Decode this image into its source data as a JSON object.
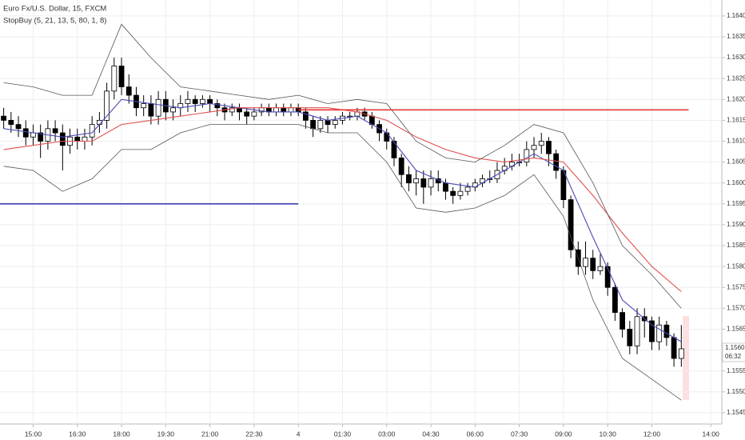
{
  "chart_data": {
    "type": "candlestick",
    "title": "Euro Fx/U.S. Dollar, 15, FXCM",
    "subtitle": "StopBuy (5, 21, 13, 5, 80, 1, 8)",
    "open": [
      1.1616,
      1.1615,
      1.1614,
      1.1613,
      1.1611,
      1.1612,
      1.161,
      1.1613,
      1.1612,
      1.1609,
      1.1611,
      1.161,
      1.1611,
      1.1614,
      1.1615,
      1.1622,
      1.1628,
      1.1623,
      1.1621,
      1.1618,
      1.1619,
      1.1616,
      1.162,
      1.1617,
      1.1618,
      1.1619,
      1.162,
      1.1619,
      1.162,
      1.1619,
      1.1618,
      1.1617,
      1.1618,
      1.1617,
      1.1616,
      1.1617,
      1.1618,
      1.1617,
      1.1618,
      1.1617,
      1.1618,
      1.1617,
      1.1615,
      1.1613,
      1.1615,
      1.1614,
      1.1615,
      1.1616,
      1.1616,
      1.1617,
      1.1616,
      1.1614,
      1.1612,
      1.161,
      1.1606,
      1.1602,
      1.16,
      1.1601,
      1.1599,
      1.1601,
      1.16,
      1.1598,
      1.1597,
      1.1598,
      1.1599,
      1.16,
      1.1601,
      1.1601,
      1.1603,
      1.1604,
      1.1605,
      1.1605,
      1.1608,
      1.1609,
      1.161,
      1.1607,
      1.1603,
      1.1596,
      1.1584,
      1.158,
      1.1582,
      1.1579,
      1.158,
      1.1575,
      1.1569,
      1.1565,
      1.1561,
      1.1568,
      1.1567,
      1.1562,
      1.1566,
      1.1563,
      1.1558
    ],
    "high": [
      1.1618,
      1.1617,
      1.1616,
      1.1615,
      1.1614,
      1.1614,
      1.1615,
      1.1615,
      1.1614,
      1.1613,
      1.1613,
      1.1613,
      1.1616,
      1.1617,
      1.1624,
      1.163,
      1.163,
      1.1626,
      1.1623,
      1.1621,
      1.1621,
      1.1622,
      1.1622,
      1.162,
      1.1621,
      1.1622,
      1.1621,
      1.1621,
      1.1621,
      1.162,
      1.1619,
      1.1619,
      1.1619,
      1.1618,
      1.1618,
      1.1619,
      1.1619,
      1.1619,
      1.1619,
      1.1619,
      1.1619,
      1.1618,
      1.1616,
      1.1616,
      1.1616,
      1.1616,
      1.1617,
      1.1617,
      1.1618,
      1.1618,
      1.1617,
      1.1615,
      1.1613,
      1.1611,
      1.1607,
      1.1604,
      1.1603,
      1.1603,
      1.1603,
      1.1603,
      1.1601,
      1.1599,
      1.16,
      1.16,
      1.1601,
      1.1602,
      1.1603,
      1.1605,
      1.1606,
      1.1607,
      1.1607,
      1.161,
      1.1611,
      1.1612,
      1.1611,
      1.1608,
      1.1604,
      1.1597,
      1.1586,
      1.1586,
      1.1584,
      1.1583,
      1.1581,
      1.1576,
      1.157,
      1.1567,
      1.157,
      1.157,
      1.1568,
      1.1568,
      1.1567,
      1.1564,
      1.1566
    ],
    "low": [
      1.1613,
      1.1612,
      1.1611,
      1.1609,
      1.1609,
      1.1606,
      1.1608,
      1.161,
      1.1603,
      1.1607,
      1.1608,
      1.1608,
      1.1609,
      1.1612,
      1.1613,
      1.162,
      1.1621,
      1.1619,
      1.1616,
      1.1616,
      1.1614,
      1.1614,
      1.1615,
      1.1615,
      1.1616,
      1.1617,
      1.1617,
      1.1618,
      1.1617,
      1.1616,
      1.1615,
      1.1616,
      1.1615,
      1.1614,
      1.1615,
      1.1616,
      1.1616,
      1.1616,
      1.1616,
      1.1616,
      1.1616,
      1.1613,
      1.1611,
      1.1612,
      1.1612,
      1.1613,
      1.1614,
      1.1615,
      1.1615,
      1.1615,
      1.1613,
      1.161,
      1.1608,
      1.1604,
      1.1599,
      1.1598,
      1.1597,
      1.1595,
      1.1597,
      1.1598,
      1.1596,
      1.1595,
      1.1596,
      1.1597,
      1.1598,
      1.1599,
      1.16,
      1.16,
      1.1602,
      1.1603,
      1.1604,
      1.1604,
      1.1606,
      1.1607,
      1.1604,
      1.1601,
      1.1594,
      1.1582,
      1.1578,
      1.1578,
      1.1577,
      1.1578,
      1.1573,
      1.1567,
      1.1563,
      1.1559,
      1.1559,
      1.1563,
      1.156,
      1.156,
      1.1561,
      1.1556,
      1.1556
    ],
    "close": [
      1.1615,
      1.1614,
      1.1613,
      1.1611,
      1.1612,
      1.161,
      1.1613,
      1.1612,
      1.1609,
      1.1611,
      1.161,
      1.1611,
      1.1614,
      1.1615,
      1.1622,
      1.1628,
      1.1623,
      1.1621,
      1.1618,
      1.1619,
      1.1616,
      1.162,
      1.1617,
      1.1618,
      1.1619,
      1.162,
      1.1619,
      1.162,
      1.1619,
      1.1618,
      1.1617,
      1.1618,
      1.1617,
      1.1616,
      1.1617,
      1.1618,
      1.1617,
      1.1618,
      1.1617,
      1.1618,
      1.1617,
      1.1615,
      1.1613,
      1.1615,
      1.1614,
      1.1615,
      1.1616,
      1.1616,
      1.1617,
      1.1616,
      1.1614,
      1.1612,
      1.161,
      1.1606,
      1.1602,
      1.16,
      1.1601,
      1.1599,
      1.1601,
      1.16,
      1.1598,
      1.1597,
      1.1598,
      1.1599,
      1.16,
      1.1601,
      1.1601,
      1.1603,
      1.1604,
      1.1605,
      1.1605,
      1.1608,
      1.1609,
      1.161,
      1.1607,
      1.1603,
      1.1596,
      1.1584,
      1.158,
      1.1582,
      1.1579,
      1.158,
      1.1575,
      1.1569,
      1.1565,
      1.1561,
      1.1568,
      1.1567,
      1.1562,
      1.1566,
      1.1563,
      1.1558,
      1.15603
    ],
    "overlays": [
      {
        "color": "#4a4ab8",
        "x": [
          0,
          4,
          8,
          12,
          16,
          20,
          24,
          28,
          32,
          36,
          40,
          44,
          48,
          52,
          56,
          60,
          64,
          68,
          72,
          76,
          80,
          84,
          88,
          92
        ],
        "values": [
          1.1613,
          1.1612,
          1.1611,
          1.1612,
          1.162,
          1.1619,
          1.1618,
          1.1619,
          1.1618,
          1.1617,
          1.1617,
          1.1615,
          1.1616,
          1.1612,
          1.1603,
          1.16,
          1.1599,
          1.1603,
          1.1607,
          1.1603,
          1.1587,
          1.1572,
          1.1566,
          1.1562
        ]
      },
      {
        "color": "#e05050",
        "x": [
          0,
          4,
          8,
          12,
          16,
          20,
          24,
          28,
          32,
          36,
          40,
          44,
          48,
          52,
          56,
          60,
          64,
          68,
          72,
          76,
          80,
          84,
          88,
          92
        ],
        "values": [
          1.1608,
          1.1609,
          1.161,
          1.161,
          1.1614,
          1.1615,
          1.1616,
          1.1617,
          1.1618,
          1.1618,
          1.1618,
          1.1618,
          1.1617,
          1.1615,
          1.1611,
          1.1608,
          1.1606,
          1.1605,
          1.1606,
          1.1605,
          1.1597,
          1.1588,
          1.158,
          1.1574
        ]
      },
      {
        "color": "#555555",
        "x": [
          0,
          4,
          8,
          12,
          16,
          20,
          24,
          28,
          32,
          36,
          40,
          44,
          48,
          52,
          56,
          60,
          64,
          68,
          72,
          76,
          80,
          84,
          88,
          92
        ],
        "values": [
          1.1624,
          1.1623,
          1.1621,
          1.1621,
          1.1638,
          1.163,
          1.1623,
          1.1622,
          1.1621,
          1.162,
          1.1621,
          1.1619,
          1.162,
          1.1619,
          1.161,
          1.1606,
          1.1605,
          1.1609,
          1.1614,
          1.1612,
          1.16,
          1.1585,
          1.1578,
          1.157
        ]
      },
      {
        "color": "#555555",
        "x": [
          0,
          4,
          8,
          12,
          16,
          20,
          24,
          28,
          32,
          36,
          40,
          44,
          48,
          52,
          56,
          60,
          64,
          68,
          72,
          76,
          80,
          84,
          88,
          92
        ],
        "values": [
          1.1604,
          1.1603,
          1.1598,
          1.1601,
          1.1608,
          1.1608,
          1.1612,
          1.1614,
          1.1614,
          1.1614,
          1.1614,
          1.1612,
          1.1612,
          1.1605,
          1.1594,
          1.1593,
          1.1594,
          1.1597,
          1.1602,
          1.1592,
          1.1572,
          1.1558,
          1.1553,
          1.1548
        ]
      }
    ],
    "levels": [
      {
        "value": 1.16175,
        "color": "#e53935",
        "from": 40,
        "to": 93
      },
      {
        "value": 1.1595,
        "color": "#3f3fb0",
        "from": -0.5,
        "to": 40
      }
    ],
    "last_price": 1.15603,
    "countdown": "06:32",
    "xlim": [
      -0.5,
      97.5
    ],
    "xticks": [
      {
        "value": 4,
        "label": "15:00"
      },
      {
        "value": 10,
        "label": "16:30"
      },
      {
        "value": 16,
        "label": "18:00"
      },
      {
        "value": 22,
        "label": "19:30"
      },
      {
        "value": 28,
        "label": "21:00"
      },
      {
        "value": 34,
        "label": "22:30"
      },
      {
        "value": 40,
        "label": "4"
      },
      {
        "value": 46,
        "label": "01:30"
      },
      {
        "value": 52,
        "label": "03:00"
      },
      {
        "value": 58,
        "label": "04:30"
      },
      {
        "value": 64,
        "label": "06:00"
      },
      {
        "value": 70,
        "label": "07:30"
      },
      {
        "value": 76,
        "label": "09:00"
      },
      {
        "value": 82,
        "label": "10:30"
      },
      {
        "value": 88,
        "label": "12:00"
      },
      {
        "value": 96,
        "label": "14:00"
      }
    ],
    "ylim": [
      1.15423,
      1.16438
    ],
    "yticks": [
      {
        "value": 1.1545,
        "label": "1.15450"
      },
      {
        "value": 1.155,
        "label": "1.15500"
      },
      {
        "value": 1.1555,
        "label": "1.15550"
      },
      {
        "value": 1.156,
        "label": "1.15600"
      },
      {
        "value": 1.1565,
        "label": "1.15650"
      },
      {
        "value": 1.157,
        "label": "1.15700"
      },
      {
        "value": 1.1575,
        "label": "1.15750"
      },
      {
        "value": 1.158,
        "label": "1.15800"
      },
      {
        "value": 1.1585,
        "label": "1.15850"
      },
      {
        "value": 1.159,
        "label": "1.15900"
      },
      {
        "value": 1.1595,
        "label": "1.15950"
      },
      {
        "value": 1.16,
        "label": "1.16000"
      },
      {
        "value": 1.1605,
        "label": "1.16050"
      },
      {
        "value": 1.161,
        "label": "1.16100"
      },
      {
        "value": 1.1615,
        "label": "1.16150"
      },
      {
        "value": 1.162,
        "label": "1.16200"
      },
      {
        "value": 1.1625,
        "label": "1.16250"
      },
      {
        "value": 1.163,
        "label": "1.16300"
      },
      {
        "value": 1.1635,
        "label": "1.16350"
      },
      {
        "value": 1.164,
        "label": "1.16400"
      }
    ],
    "grid": true,
    "up_color": "#ffffff",
    "down_color": "#000000"
  }
}
